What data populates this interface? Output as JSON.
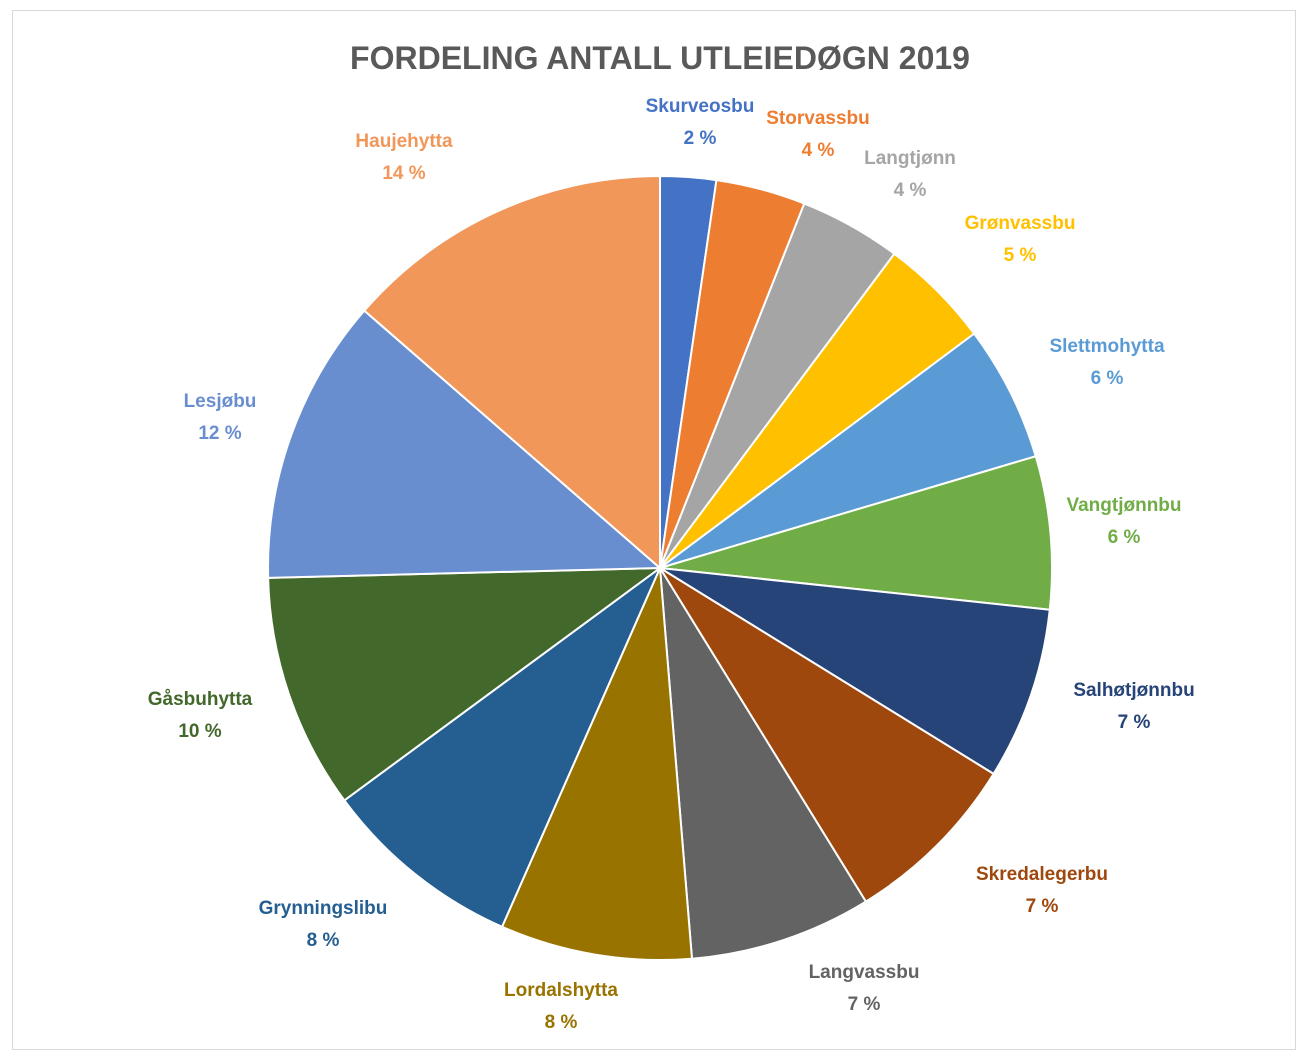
{
  "chart_data": {
    "type": "pie",
    "title": "FORDELING ANTALL UTLEIEDØGN 2019",
    "slices": [
      {
        "label": "Skurveosbu",
        "percent_label": "2 %",
        "value": 2.3,
        "color": "#4472C4"
      },
      {
        "label": "Storvassbu",
        "percent_label": "4 %",
        "value": 3.7,
        "color": "#ED7D31"
      },
      {
        "label": "Langtjønn",
        "percent_label": "4 %",
        "value": 4.2,
        "color": "#A5A5A5"
      },
      {
        "label": "Grønvassbu",
        "percent_label": "5 %",
        "value": 4.6,
        "color": "#FFC000"
      },
      {
        "label": "Slettmohytta",
        "percent_label": "6 %",
        "value": 5.6,
        "color": "#5B9BD5"
      },
      {
        "label": "Vangtjønnbu",
        "percent_label": "6 %",
        "value": 6.3,
        "color": "#70AD47"
      },
      {
        "label": "Salhøtjønnbu",
        "percent_label": "7 %",
        "value": 7.1,
        "color": "#264478"
      },
      {
        "label": "Skredalegerbu",
        "percent_label": "7 %",
        "value": 7.4,
        "color": "#9E480E"
      },
      {
        "label": "Langvassbu",
        "percent_label": "7 %",
        "value": 7.5,
        "color": "#636363"
      },
      {
        "label": "Lordalshytta",
        "percent_label": "8 %",
        "value": 7.9,
        "color": "#997300"
      },
      {
        "label": "Grynningslibu",
        "percent_label": "8 %",
        "value": 8.3,
        "color": "#255E91"
      },
      {
        "label": "Gåsbuhytta",
        "percent_label": "10 %",
        "value": 9.7,
        "color": "#43682B"
      },
      {
        "label": "Lesjøbu",
        "percent_label": "12 %",
        "value": 11.8,
        "color": "#698ED0"
      },
      {
        "label": "Haujehytta",
        "percent_label": "14 %",
        "value": 13.6,
        "color": "#F1975A"
      }
    ]
  }
}
